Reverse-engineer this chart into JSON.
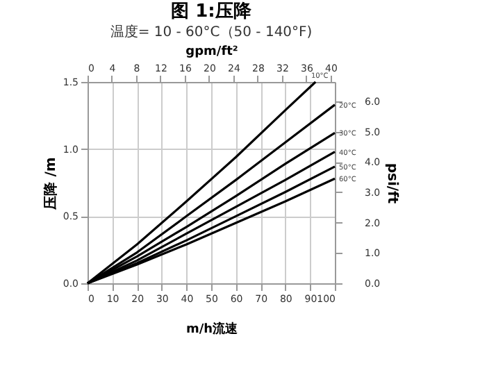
{
  "chart_data": {
    "type": "line",
    "title": "图 1:压降",
    "subtitle": "温度= 10 - 60°C（50 - 140°F)",
    "xlabel": "m/h流速",
    "ylabel": "压降 /m",
    "y2label": "psi/ft",
    "x2label": "gpm/ft²",
    "xlim": [
      0,
      100
    ],
    "xticks": [
      0,
      10,
      20,
      30,
      40,
      50,
      60,
      70,
      80,
      90,
      100
    ],
    "ylim": [
      0,
      1.5
    ],
    "yticks": [
      {
        "value": 0,
        "label": "0.0"
      },
      0.5,
      {
        "value": 1,
        "label": "1.0"
      },
      1.5
    ],
    "y2lim": [
      0,
      6.64
    ],
    "y2ticks": [
      {
        "value": 0,
        "label": "0.0"
      },
      {
        "value": 1,
        "label": "1.0"
      },
      {
        "value": 2,
        "label": "2.0"
      },
      {
        "value": 3,
        "label": "3.0"
      },
      {
        "value": 4,
        "label": "4.0"
      },
      {
        "value": 5,
        "label": "5.0"
      },
      {
        "value": 6,
        "label": "6.0"
      }
    ],
    "x2lim": [
      0,
      40.7
    ],
    "x2ticks": [
      0,
      4,
      8,
      12,
      16,
      20,
      24,
      28,
      32,
      36,
      40
    ],
    "grid": true,
    "legend": false,
    "marker": "none",
    "line_style": "solid",
    "x": [
      0,
      20,
      40,
      60,
      80,
      100
    ],
    "series": [
      {
        "name": "10°C",
        "color": "#000000",
        "x": [
          0,
          20,
          40,
          60,
          80,
          92.2
        ],
        "values": [
          0,
          0.29,
          0.61,
          0.94,
          1.29,
          1.5
        ]
      },
      {
        "name": "20°C",
        "color": "#000000",
        "values": [
          0,
          0.23,
          0.5,
          0.77,
          1.05,
          1.33
        ]
      },
      {
        "name": "30°C",
        "color": "#000000",
        "values": [
          0,
          0.2,
          0.42,
          0.65,
          0.89,
          1.12
        ]
      },
      {
        "name": "40°C",
        "color": "#000000",
        "values": [
          0,
          0.17,
          0.37,
          0.57,
          0.77,
          0.98
        ]
      },
      {
        "name": "50°C",
        "color": "#000000",
        "values": [
          0,
          0.15,
          0.32,
          0.5,
          0.68,
          0.87
        ]
      },
      {
        "name": "60°C",
        "color": "#000000",
        "values": [
          0,
          0.14,
          0.29,
          0.45,
          0.61,
          0.78
        ]
      }
    ]
  }
}
